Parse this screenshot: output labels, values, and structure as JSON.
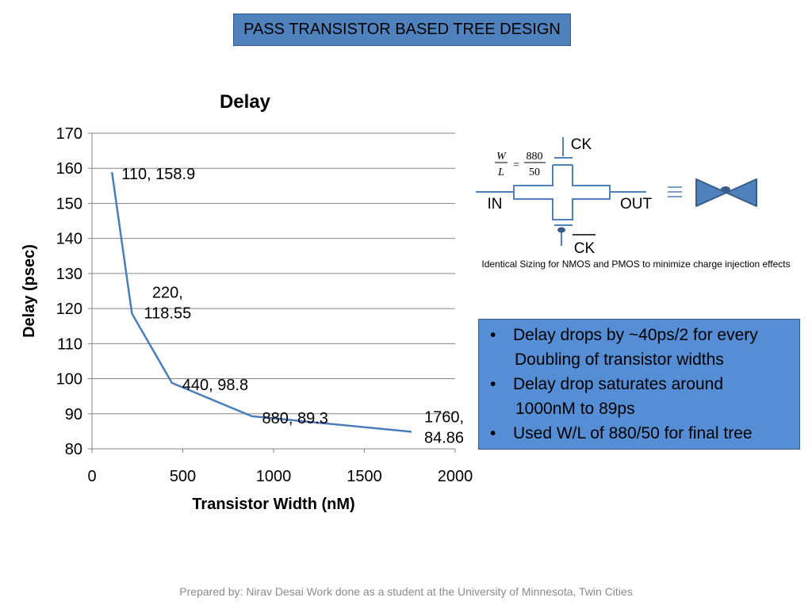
{
  "slide_title": "PASS TRANSISTOR BASED TREE DESIGN",
  "chart_data": {
    "type": "line",
    "title": "Delay",
    "xlabel": "Transistor Width (nM)",
    "ylabel": "Delay (psec)",
    "xlim": [
      0,
      2000
    ],
    "ylim": [
      80,
      170
    ],
    "x_ticks": [
      0,
      500,
      1000,
      1500,
      2000
    ],
    "y_ticks": [
      80,
      90,
      100,
      110,
      120,
      130,
      140,
      150,
      160,
      170
    ],
    "grid": "horizontal",
    "legend": "none",
    "series_color": "#4a7ebb",
    "series": [
      {
        "x": [
          110,
          220,
          440,
          880,
          1760
        ],
        "y": [
          158.9,
          118.55,
          98.8,
          89.3,
          84.86
        ]
      }
    ],
    "data_labels": [
      {
        "lines": [
          "110, 158.9"
        ]
      },
      {
        "lines": [
          "220,",
          "118.55"
        ]
      },
      {
        "lines": [
          "440, 98.8"
        ]
      },
      {
        "lines": [
          "880, 89.3"
        ]
      },
      {
        "lines": [
          "1760,",
          "84.86"
        ]
      }
    ]
  },
  "circuit": {
    "ck_label": "CK",
    "ckbar_label": "CK",
    "in_label": "IN",
    "out_label": "OUT",
    "w_label": "W",
    "l_label": "L",
    "equals_sign": "=",
    "w_value": "880",
    "l_value": "50",
    "equiv_icon": "triple-bar-equivalence-icon",
    "gate_icon": "transmission-gate-bowtie-icon",
    "gate_color": "#4f81bd",
    "caption": "Identical Sizing for NMOS and PMOS to minimize charge injection effects"
  },
  "bullets": {
    "marker": "•",
    "items": [
      {
        "text": "Delay drops by ~40ps/2 for every",
        "continuation": "Doubling of transistor widths"
      },
      {
        "text": "Delay drop saturates around",
        "continuation": "1000nM to 89ps"
      },
      {
        "text": "Used W/L of 880/50 for final tree"
      }
    ]
  },
  "footer": "Prepared by: Nirav Desai Work done as a student at the University of Minnesota, Twin Cities"
}
